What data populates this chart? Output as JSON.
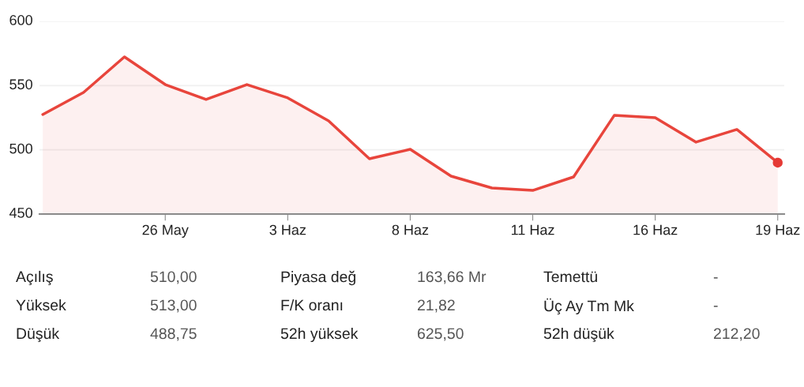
{
  "chart_data": [
    {
      "type": "area",
      "categories": [
        null,
        null,
        null,
        "26 May",
        null,
        null,
        "3 Haz",
        null,
        null,
        "8 Haz",
        null,
        null,
        "11 Haz",
        null,
        null,
        "16 Haz",
        null,
        null,
        "19 Haz"
      ],
      "series": [
        {
          "color": "#e8453c",
          "values": [
            527.5,
            544.7,
            572.3,
            550.8,
            539.2,
            550.8,
            540.4,
            522.6,
            493,
            500.4,
            479.5,
            470.3,
            468.4,
            478.9,
            526.9,
            525,
            506,
            515.8,
            490
          ]
        },
        {
          "type": "scatter",
          "color": "#e53935",
          "marker": "circle",
          "x": [
            "19 Haz"
          ],
          "values": [
            490
          ]
        }
      ],
      "ylim": [
        450,
        600
      ],
      "yticks": [
        450,
        500,
        550,
        600
      ],
      "grid": "y"
    },
    {
      "type": "other",
      "annotations": [
        "Açılış",
        "510,00",
        "Piyasa değ",
        "163,66 Mr",
        "Temettü",
        "-",
        "Yüksek",
        "513,00",
        "F/K oranı",
        "21,82",
        "Üç Ay Tm Mk",
        "-",
        "Düşük",
        "488,75",
        "52h yüksek",
        "625,50",
        "52h düşük",
        "212,20"
      ]
    }
  ]
}
